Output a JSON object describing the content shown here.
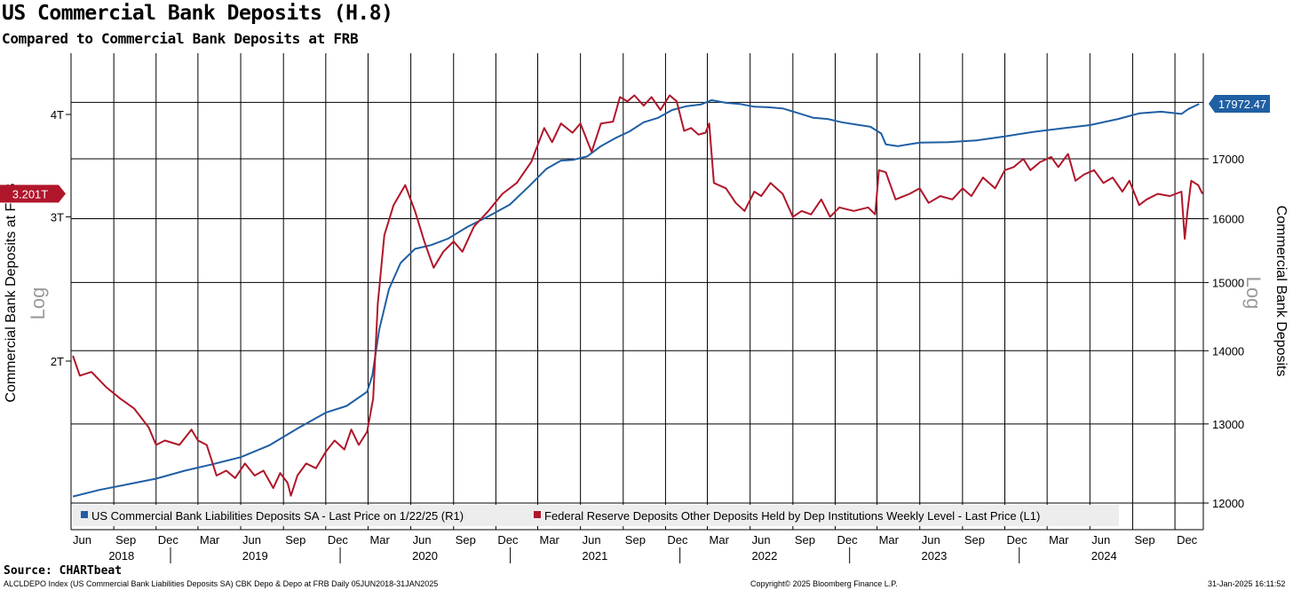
{
  "header": {
    "title": "US Commercial Bank Deposits (H.8)",
    "subtitle": "Compared to Commercial Bank Deposits at FRB"
  },
  "footer": {
    "source": "Source: CHARTbeat",
    "index_info": "ALCLDEPO Index (US Commercial Bank Liabilities Deposits SA) CBK Depo & Depo at FRB  Daily 05JUN2018-31JAN2025",
    "copyright": "Copyright© 2025 Bloomberg Finance L.P.",
    "timestamp": "31-Jan-2025 16:11:52"
  },
  "chart_data": {
    "type": "line",
    "title": "US Commercial Bank Deposits (H.8)",
    "subtitle": "Compared to Commercial Bank Deposits at FRB",
    "left_axis": {
      "label": "Commercial Bank Deposits at FRB",
      "scale_note": "Log",
      "ticks": [
        {
          "value": 2.0,
          "label": "2T"
        },
        {
          "value": 3.0,
          "label": "3T"
        },
        {
          "value": 4.0,
          "label": "4T"
        }
      ],
      "last_value_label": "3.201T",
      "last_value": 3.201
    },
    "right_axis": {
      "label": "Commercial Bank Deposits",
      "scale_note": "Log",
      "ticks": [
        12000,
        13000,
        14000,
        15000,
        16000,
        17000
      ],
      "last_value_label": "17972.47",
      "last_value": 17972.47
    },
    "x_axis": {
      "range": [
        "2018-06-05",
        "2025-01-31"
      ],
      "month_ticks": [
        {
          "date": "2018-06-01",
          "label": "Jun"
        },
        {
          "date": "2018-09-01",
          "label": "Sep"
        },
        {
          "date": "2018-12-01",
          "label": "Dec"
        },
        {
          "date": "2019-03-01",
          "label": "Mar"
        },
        {
          "date": "2019-06-01",
          "label": "Jun"
        },
        {
          "date": "2019-09-01",
          "label": "Sep"
        },
        {
          "date": "2019-12-01",
          "label": "Dec"
        },
        {
          "date": "2020-03-01",
          "label": "Mar"
        },
        {
          "date": "2020-06-01",
          "label": "Jun"
        },
        {
          "date": "2020-09-01",
          "label": "Sep"
        },
        {
          "date": "2020-12-01",
          "label": "Dec"
        },
        {
          "date": "2021-03-01",
          "label": "Mar"
        },
        {
          "date": "2021-06-01",
          "label": "Jun"
        },
        {
          "date": "2021-09-01",
          "label": "Sep"
        },
        {
          "date": "2021-12-01",
          "label": "Dec"
        },
        {
          "date": "2022-03-01",
          "label": "Mar"
        },
        {
          "date": "2022-06-01",
          "label": "Jun"
        },
        {
          "date": "2022-09-01",
          "label": "Sep"
        },
        {
          "date": "2022-12-01",
          "label": "Dec"
        },
        {
          "date": "2023-03-01",
          "label": "Mar"
        },
        {
          "date": "2023-06-01",
          "label": "Jun"
        },
        {
          "date": "2023-09-01",
          "label": "Sep"
        },
        {
          "date": "2023-12-01",
          "label": "Dec"
        },
        {
          "date": "2024-03-01",
          "label": "Mar"
        },
        {
          "date": "2024-06-01",
          "label": "Jun"
        },
        {
          "date": "2024-09-01",
          "label": "Sep"
        },
        {
          "date": "2024-12-01",
          "label": "Dec"
        }
      ],
      "years": [
        "2018",
        "2019",
        "2020",
        "2021",
        "2022",
        "2023",
        "2024"
      ]
    },
    "grid": true,
    "legend": {
      "placement": "bottom-left"
    },
    "colors": {
      "us_deposits": "#1f5fa3",
      "fed_deposits": "#b0162a"
    },
    "series": [
      {
        "name": "US Commercial Bank Liabilities Deposits SA - Last Price on 1/22/25 (R1)",
        "axis": "right",
        "color": "#1f5fa3",
        "points": [
          [
            "2018-06-05",
            12080
          ],
          [
            "2018-08-01",
            12160
          ],
          [
            "2018-10-01",
            12230
          ],
          [
            "2018-12-01",
            12300
          ],
          [
            "2019-02-01",
            12400
          ],
          [
            "2019-04-01",
            12480
          ],
          [
            "2019-06-01",
            12570
          ],
          [
            "2019-08-01",
            12720
          ],
          [
            "2019-10-01",
            12940
          ],
          [
            "2019-12-01",
            13150
          ],
          [
            "2020-01-15",
            13240
          ],
          [
            "2020-02-28",
            13430
          ],
          [
            "2020-03-10",
            13650
          ],
          [
            "2020-03-25",
            14300
          ],
          [
            "2020-04-15",
            14900
          ],
          [
            "2020-05-10",
            15300
          ],
          [
            "2020-06-10",
            15520
          ],
          [
            "2020-07-15",
            15580
          ],
          [
            "2020-08-20",
            15680
          ],
          [
            "2020-10-01",
            15870
          ],
          [
            "2020-11-15",
            16040
          ],
          [
            "2020-12-31",
            16230
          ],
          [
            "2021-02-10",
            16530
          ],
          [
            "2021-03-20",
            16830
          ],
          [
            "2021-04-20",
            16970
          ],
          [
            "2021-05-15",
            16980
          ],
          [
            "2021-06-15",
            17040
          ],
          [
            "2021-07-15",
            17220
          ],
          [
            "2021-08-15",
            17360
          ],
          [
            "2021-09-15",
            17480
          ],
          [
            "2021-10-15",
            17640
          ],
          [
            "2021-11-15",
            17720
          ],
          [
            "2021-12-15",
            17860
          ],
          [
            "2022-01-15",
            17930
          ],
          [
            "2022-02-15",
            17960
          ],
          [
            "2022-03-10",
            18040
          ],
          [
            "2022-04-10",
            17990
          ],
          [
            "2022-05-10",
            17970
          ],
          [
            "2022-06-10",
            17920
          ],
          [
            "2022-07-10",
            17910
          ],
          [
            "2022-08-10",
            17890
          ],
          [
            "2022-09-10",
            17810
          ],
          [
            "2022-10-15",
            17720
          ],
          [
            "2022-11-15",
            17700
          ],
          [
            "2022-12-15",
            17640
          ],
          [
            "2023-01-15",
            17600
          ],
          [
            "2023-02-15",
            17560
          ],
          [
            "2023-03-10",
            17440
          ],
          [
            "2023-03-20",
            17250
          ],
          [
            "2023-04-15",
            17220
          ],
          [
            "2023-06-01",
            17280
          ],
          [
            "2023-08-01",
            17290
          ],
          [
            "2023-10-01",
            17320
          ],
          [
            "2023-12-01",
            17390
          ],
          [
            "2024-02-01",
            17470
          ],
          [
            "2024-04-01",
            17530
          ],
          [
            "2024-06-01",
            17590
          ],
          [
            "2024-08-01",
            17700
          ],
          [
            "2024-09-15",
            17800
          ],
          [
            "2024-11-01",
            17830
          ],
          [
            "2024-12-15",
            17790
          ],
          [
            "2024-12-30",
            17880
          ],
          [
            "2025-01-22",
            17972
          ]
        ]
      },
      {
        "name": "Federal Reserve Deposits Other Deposits Held by Dep Institutions Weekly Level - Last Price (L1)",
        "axis": "left",
        "color": "#b0162a",
        "points": [
          [
            "2018-06-05",
            2.03
          ],
          [
            "2018-06-20",
            1.92
          ],
          [
            "2018-07-15",
            1.94
          ],
          [
            "2018-08-15",
            1.86
          ],
          [
            "2018-09-15",
            1.8
          ],
          [
            "2018-10-15",
            1.75
          ],
          [
            "2018-11-15",
            1.66
          ],
          [
            "2018-12-01",
            1.58
          ],
          [
            "2018-12-20",
            1.6
          ],
          [
            "2019-01-20",
            1.58
          ],
          [
            "2019-02-15",
            1.65
          ],
          [
            "2019-03-01",
            1.6
          ],
          [
            "2019-03-20",
            1.58
          ],
          [
            "2019-04-10",
            1.45
          ],
          [
            "2019-05-01",
            1.47
          ],
          [
            "2019-05-20",
            1.44
          ],
          [
            "2019-06-10",
            1.5
          ],
          [
            "2019-07-01",
            1.45
          ],
          [
            "2019-07-20",
            1.47
          ],
          [
            "2019-08-10",
            1.4
          ],
          [
            "2019-08-25",
            1.46
          ],
          [
            "2019-09-10",
            1.42
          ],
          [
            "2019-09-17",
            1.37
          ],
          [
            "2019-10-01",
            1.45
          ],
          [
            "2019-10-20",
            1.5
          ],
          [
            "2019-11-10",
            1.48
          ],
          [
            "2019-12-01",
            1.55
          ],
          [
            "2019-12-20",
            1.6
          ],
          [
            "2020-01-10",
            1.56
          ],
          [
            "2020-01-25",
            1.65
          ],
          [
            "2020-02-10",
            1.58
          ],
          [
            "2020-02-28",
            1.64
          ],
          [
            "2020-03-12",
            1.8
          ],
          [
            "2020-03-22",
            2.35
          ],
          [
            "2020-04-05",
            2.85
          ],
          [
            "2020-04-25",
            3.1
          ],
          [
            "2020-05-20",
            3.28
          ],
          [
            "2020-06-10",
            3.05
          ],
          [
            "2020-06-30",
            2.8
          ],
          [
            "2020-07-20",
            2.6
          ],
          [
            "2020-08-10",
            2.72
          ],
          [
            "2020-09-01",
            2.8
          ],
          [
            "2020-09-20",
            2.72
          ],
          [
            "2020-10-15",
            2.92
          ],
          [
            "2020-11-15",
            3.05
          ],
          [
            "2020-12-15",
            3.2
          ],
          [
            "2021-01-15",
            3.3
          ],
          [
            "2021-02-15",
            3.5
          ],
          [
            "2021-03-15",
            3.85
          ],
          [
            "2021-04-01",
            3.7
          ],
          [
            "2021-04-20",
            3.9
          ],
          [
            "2021-05-15",
            3.8
          ],
          [
            "2021-06-01",
            3.9
          ],
          [
            "2021-06-25",
            3.6
          ],
          [
            "2021-07-15",
            3.9
          ],
          [
            "2021-08-10",
            3.92
          ],
          [
            "2021-08-25",
            4.2
          ],
          [
            "2021-09-10",
            4.15
          ],
          [
            "2021-09-25",
            4.22
          ],
          [
            "2021-10-15",
            4.1
          ],
          [
            "2021-11-01",
            4.2
          ],
          [
            "2021-11-20",
            4.05
          ],
          [
            "2021-12-10",
            4.22
          ],
          [
            "2021-12-25",
            4.15
          ],
          [
            "2022-01-10",
            3.82
          ],
          [
            "2022-01-25",
            3.85
          ],
          [
            "2022-02-10",
            3.78
          ],
          [
            "2022-02-25",
            3.8
          ],
          [
            "2022-03-05",
            3.9
          ],
          [
            "2022-03-15",
            3.3
          ],
          [
            "2022-04-10",
            3.25
          ],
          [
            "2022-05-01",
            3.12
          ],
          [
            "2022-05-20",
            3.05
          ],
          [
            "2022-06-10",
            3.22
          ],
          [
            "2022-06-25",
            3.18
          ],
          [
            "2022-07-15",
            3.3
          ],
          [
            "2022-08-10",
            3.2
          ],
          [
            "2022-09-01",
            3.0
          ],
          [
            "2022-09-20",
            3.05
          ],
          [
            "2022-10-10",
            3.02
          ],
          [
            "2022-11-01",
            3.15
          ],
          [
            "2022-11-20",
            3.0
          ],
          [
            "2022-12-10",
            3.08
          ],
          [
            "2023-01-10",
            3.05
          ],
          [
            "2023-02-10",
            3.08
          ],
          [
            "2023-02-25",
            3.02
          ],
          [
            "2023-03-05",
            3.42
          ],
          [
            "2023-03-20",
            3.4
          ],
          [
            "2023-04-10",
            3.15
          ],
          [
            "2023-05-10",
            3.2
          ],
          [
            "2023-06-01",
            3.25
          ],
          [
            "2023-06-20",
            3.12
          ],
          [
            "2023-07-15",
            3.18
          ],
          [
            "2023-08-10",
            3.15
          ],
          [
            "2023-09-01",
            3.25
          ],
          [
            "2023-09-20",
            3.18
          ],
          [
            "2023-10-15",
            3.35
          ],
          [
            "2023-11-10",
            3.25
          ],
          [
            "2023-12-01",
            3.42
          ],
          [
            "2023-12-20",
            3.45
          ],
          [
            "2024-01-10",
            3.53
          ],
          [
            "2024-01-25",
            3.42
          ],
          [
            "2024-02-15",
            3.5
          ],
          [
            "2024-03-10",
            3.55
          ],
          [
            "2024-03-25",
            3.45
          ],
          [
            "2024-04-15",
            3.58
          ],
          [
            "2024-05-01",
            3.32
          ],
          [
            "2024-05-20",
            3.38
          ],
          [
            "2024-06-10",
            3.42
          ],
          [
            "2024-06-30",
            3.3
          ],
          [
            "2024-07-20",
            3.35
          ],
          [
            "2024-08-10",
            3.22
          ],
          [
            "2024-08-25",
            3.32
          ],
          [
            "2024-09-15",
            3.1
          ],
          [
            "2024-10-01",
            3.15
          ],
          [
            "2024-10-25",
            3.2
          ],
          [
            "2024-11-20",
            3.18
          ],
          [
            "2024-12-15",
            3.22
          ],
          [
            "2024-12-22",
            2.82
          ],
          [
            "2024-12-28",
            3.05
          ],
          [
            "2025-01-05",
            3.32
          ],
          [
            "2025-01-20",
            3.28
          ],
          [
            "2025-01-29",
            3.201
          ]
        ]
      }
    ]
  }
}
